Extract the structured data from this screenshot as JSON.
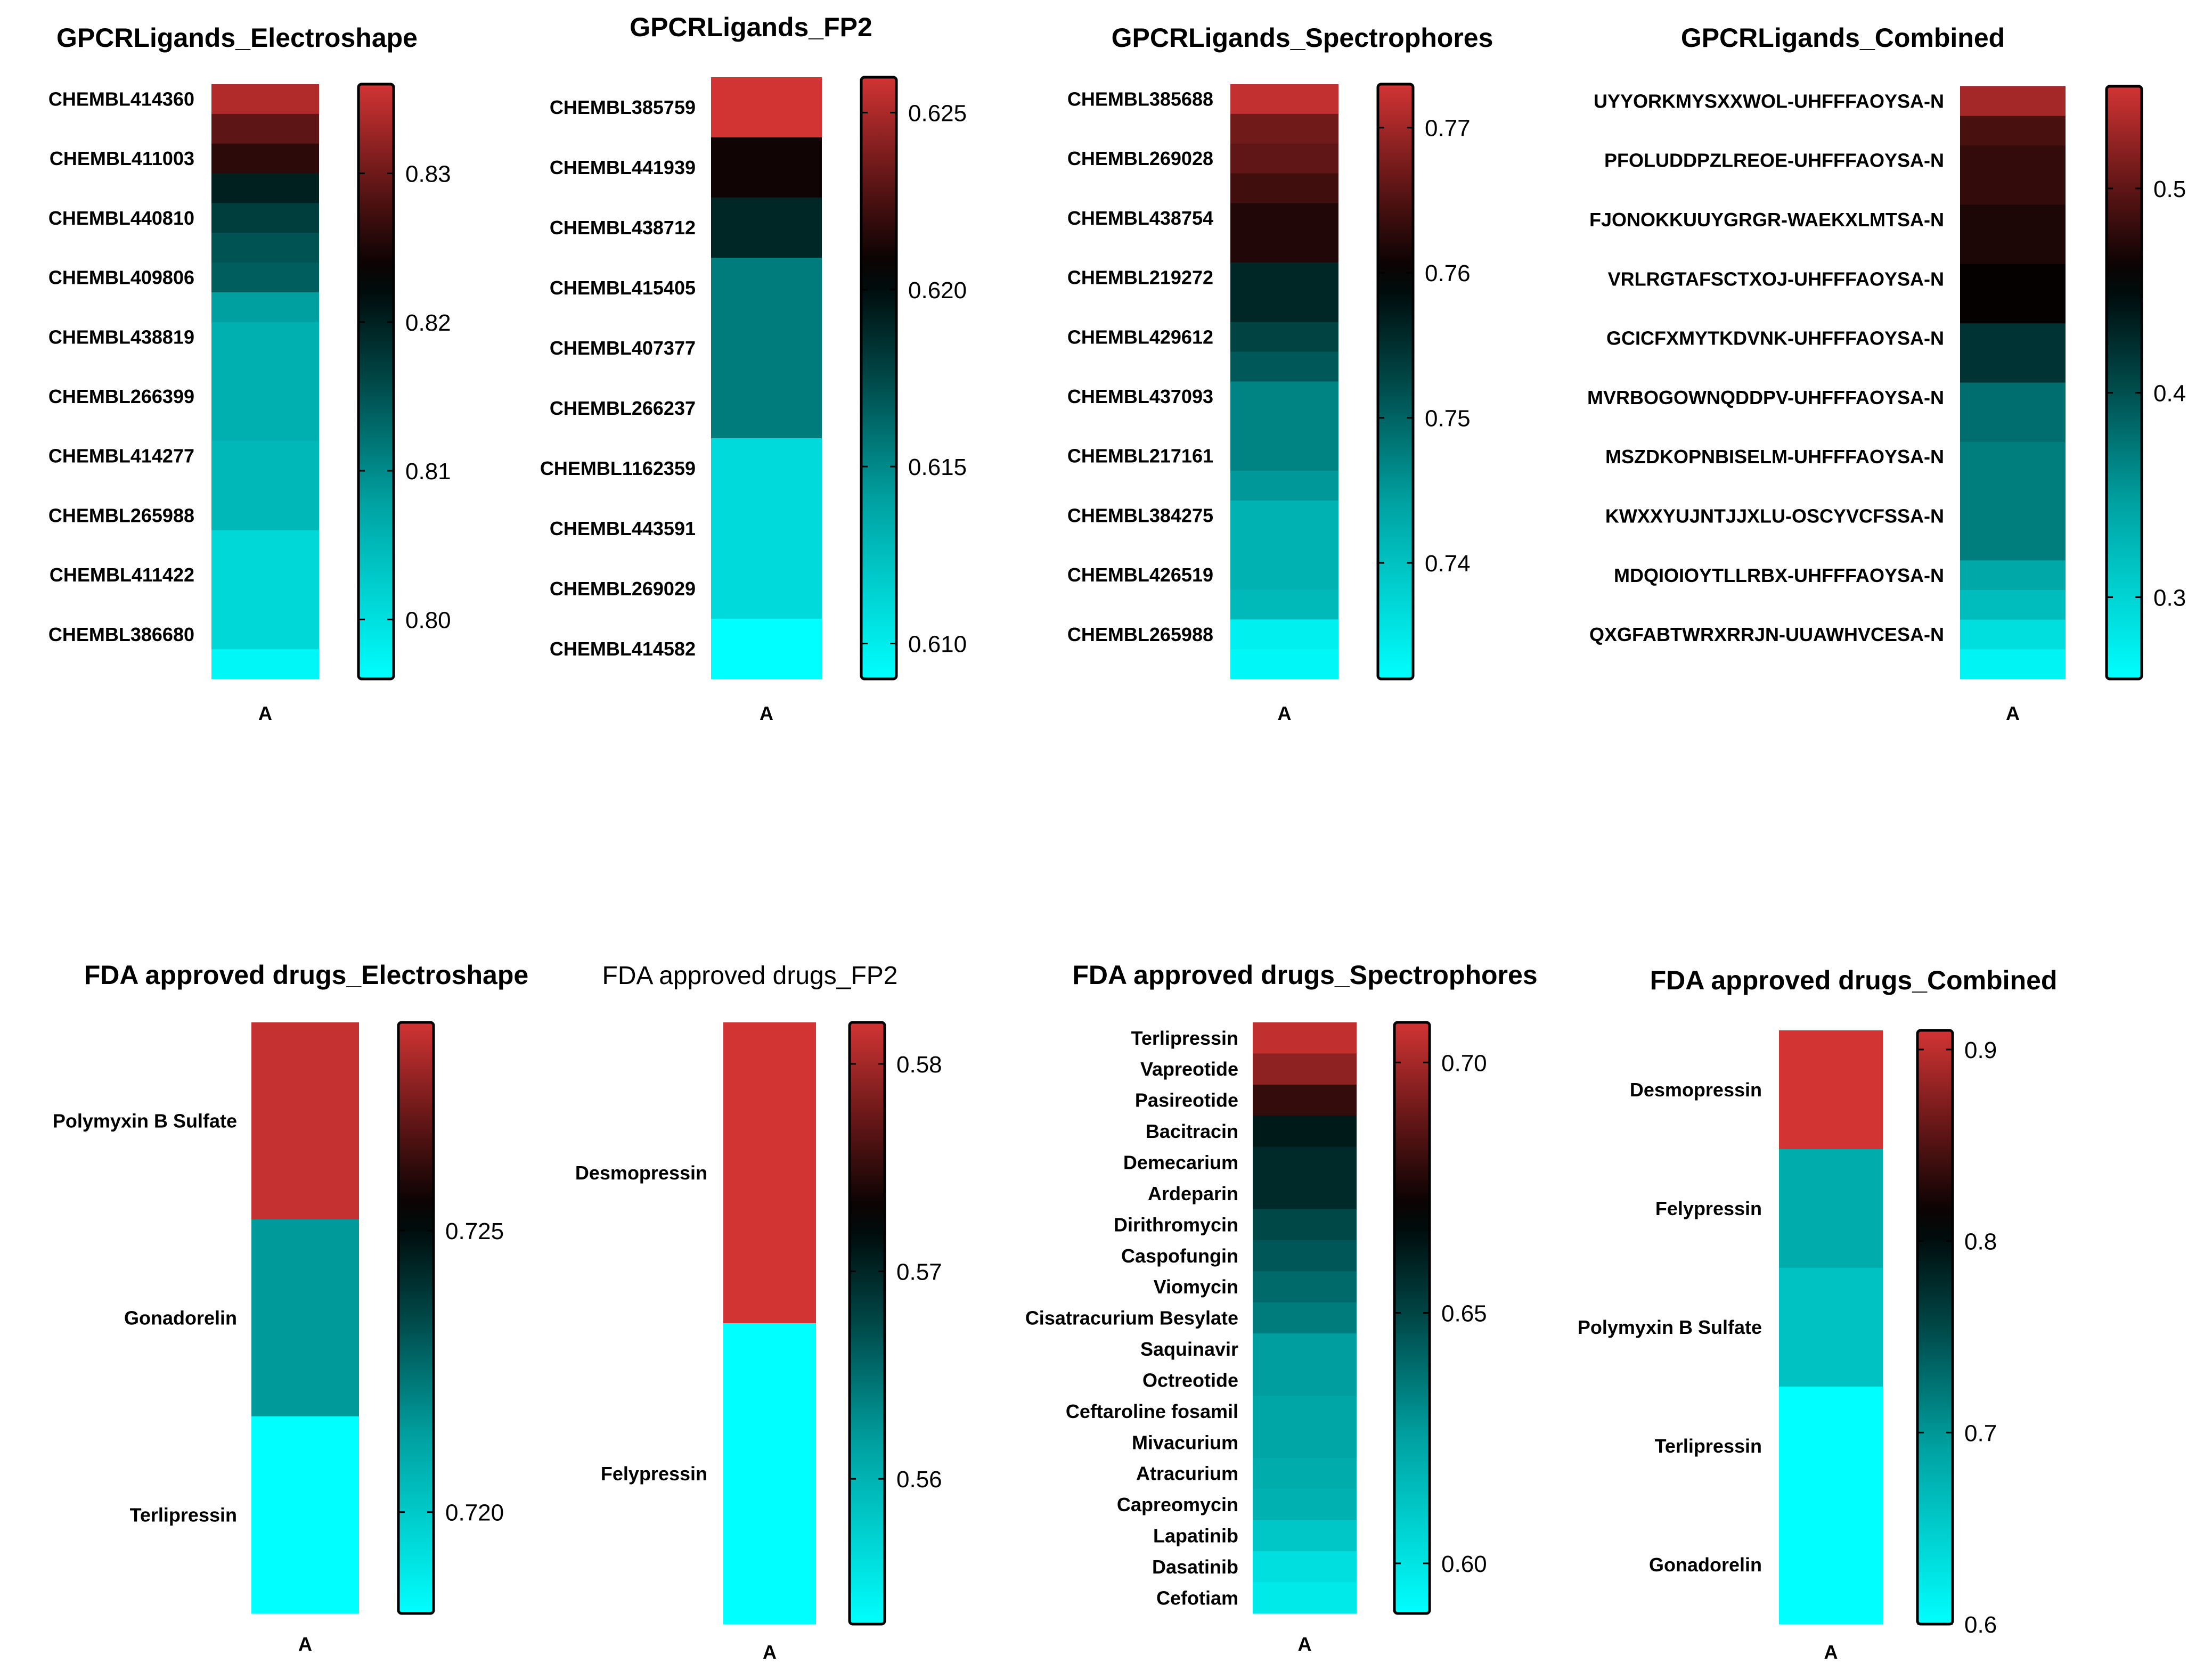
{
  "chart_data": [
    {
      "type": "heatmap",
      "title": "GPCRLigands_Electroshape",
      "title_bold": true,
      "column_label": "A",
      "rows": [
        "CHEMBL414360",
        "",
        "CHEMBL411003",
        "",
        "CHEMBL440810",
        "",
        "CHEMBL409806",
        "",
        "CHEMBL438819",
        "",
        "CHEMBL266399",
        "",
        "CHEMBL414277",
        "",
        "CHEMBL265988",
        "",
        "CHEMBL411422",
        "",
        "CHEMBL386680",
        ""
      ],
      "values": [
        0.834,
        0.829,
        0.826,
        0.82,
        0.817,
        0.815,
        0.814,
        0.808,
        0.806,
        0.806,
        0.806,
        0.806,
        0.805,
        0.805,
        0.805,
        0.801,
        0.801,
        0.801,
        0.801,
        0.797
      ],
      "colorbar": {
        "min": 0.796,
        "max": 0.836,
        "ticks": [
          0.8,
          0.81,
          0.82,
          0.83
        ],
        "tick_labels": [
          "0.80",
          "0.81",
          "0.82",
          "0.83"
        ]
      }
    },
    {
      "type": "heatmap",
      "title": "GPCRLigands_FP2",
      "title_bold": true,
      "column_label": "A",
      "rows": [
        "CHEMBL385759",
        "CHEMBL441939",
        "CHEMBL438712",
        "CHEMBL415405",
        "CHEMBL407377",
        "CHEMBL266237",
        "CHEMBL1162359",
        "CHEMBL443591",
        "CHEMBL269029",
        "CHEMBL414582"
      ],
      "values": [
        0.626,
        0.621,
        0.619,
        0.6155,
        0.6155,
        0.6155,
        0.611,
        0.611,
        0.611,
        0.609
      ],
      "colorbar": {
        "min": 0.609,
        "max": 0.626,
        "ticks": [
          0.61,
          0.615,
          0.62,
          0.625
        ],
        "tick_labels": [
          "0.610",
          "0.615",
          "0.620",
          "0.625"
        ]
      }
    },
    {
      "type": "heatmap",
      "title": "GPCRLigands_Spectrophores",
      "title_bold": true,
      "column_label": "A",
      "rows": [
        "CHEMBL385688",
        "",
        "CHEMBL269028",
        "",
        "CHEMBL438754",
        "",
        "CHEMBL219272",
        "",
        "CHEMBL429612",
        "",
        "CHEMBL437093",
        "",
        "CHEMBL217161",
        "",
        "CHEMBL384275",
        "",
        "CHEMBL426519",
        "",
        "CHEMBL265988",
        ""
      ],
      "values": [
        0.772,
        0.767,
        0.766,
        0.764,
        0.762,
        0.762,
        0.756,
        0.756,
        0.753,
        0.751,
        0.747,
        0.747,
        0.747,
        0.745,
        0.742,
        0.742,
        0.742,
        0.741,
        0.734,
        0.733
      ],
      "colorbar": {
        "min": 0.732,
        "max": 0.773,
        "ticks": [
          0.74,
          0.75,
          0.76,
          0.77
        ],
        "tick_labels": [
          "0.74",
          "0.75",
          "0.76",
          "0.77"
        ]
      }
    },
    {
      "type": "heatmap",
      "title": "GPCRLigands_Combined",
      "title_bold": true,
      "column_label": "A",
      "rows": [
        "UYYORKMYSXXWOL-UHFFFAOYSA-N",
        "",
        "PFOLUDDPZLREOE-UHFFFAOYSA-N",
        "",
        "FJONOKKUUYGRGR-WAEKXLMTSA-N",
        "",
        "VRLRGTAFSCTXOJ-UHFFFAOYSA-N",
        "",
        "GCICFXMYTKDVNK-UHFFFAOYSA-N",
        "",
        "MVRBOGOWNQDDPV-UHFFFAOYSA-N",
        "",
        "MSZDKOPNBISELM-UHFFFAOYSA-N",
        "",
        "KWXXYUJNTJJXLU-OSCYVCFSSA-N",
        "",
        "MDQIOIOYTLLRBX-UHFFFAOYSA-N",
        "",
        "QXGFABTWRXRRJN-UUAWHVCESA-N",
        ""
      ],
      "values": [
        0.53,
        0.49,
        0.48,
        0.48,
        0.47,
        0.47,
        0.46,
        0.46,
        0.42,
        0.42,
        0.38,
        0.38,
        0.37,
        0.37,
        0.37,
        0.37,
        0.34,
        0.32,
        0.29,
        0.27
      ],
      "colorbar": {
        "min": 0.26,
        "max": 0.55,
        "ticks": [
          0.3,
          0.4,
          0.5
        ],
        "tick_labels": [
          "0.3",
          "0.4",
          "0.5"
        ]
      }
    },
    {
      "type": "heatmap",
      "title": "FDA approved drugs_Electroshape",
      "title_bold": true,
      "column_label": "A",
      "rows": [
        "Polymyxin B Sulfate",
        "Gonadorelin",
        "Terlipressin"
      ],
      "values": [
        0.7285,
        0.7215,
        0.7182
      ],
      "colorbar": {
        "min": 0.7182,
        "max": 0.7287,
        "ticks": [
          0.72,
          0.725
        ],
        "tick_labels": [
          "0.720",
          "0.725"
        ]
      }
    },
    {
      "type": "heatmap",
      "title": "FDA approved drugs_FP2",
      "title_bold": false,
      "column_label": "A",
      "rows": [
        "Desmopressin",
        "Felypressin"
      ],
      "values": [
        0.582,
        0.553
      ],
      "colorbar": {
        "min": 0.553,
        "max": 0.582,
        "ticks": [
          0.56,
          0.57,
          0.58
        ],
        "tick_labels": [
          "0.56",
          "0.57",
          "0.58"
        ]
      }
    },
    {
      "type": "heatmap",
      "title": "FDA approved drugs_Spectrophores",
      "title_bold": true,
      "column_label": "A",
      "rows": [
        "Terlipressin",
        "Vapreotide",
        "Pasireotide",
        "Bacitracin",
        "Demecarium",
        "Ardeparin",
        "Dirithromycin",
        "Caspofungin",
        "Viomycin",
        "Cisatracurium Besylate",
        "Saquinavir",
        "Octreotide",
        "Ceftaroline fosamil",
        "Mivacurium",
        "Atracurium",
        "Capreomycin",
        "Lapatinib",
        "Dasatinib",
        "Cefotiam"
      ],
      "values": [
        0.705,
        0.696,
        0.68,
        0.663,
        0.658,
        0.658,
        0.649,
        0.645,
        0.64,
        0.635,
        0.626,
        0.626,
        0.623,
        0.623,
        0.621,
        0.619,
        0.611,
        0.602,
        0.598
      ],
      "colorbar": {
        "min": 0.59,
        "max": 0.708,
        "ticks": [
          0.6,
          0.65,
          0.7
        ],
        "tick_labels": [
          "0.60",
          "0.65",
          "0.70"
        ]
      }
    },
    {
      "type": "heatmap",
      "title": "FDA approved drugs_Combined",
      "title_bold": true,
      "column_label": "A",
      "rows": [
        "Desmopressin",
        "Felypressin",
        "Polymyxin B Sulfate",
        "Terlipressin",
        "Gonadorelin"
      ],
      "values": [
        0.91,
        0.68,
        0.66,
        0.6,
        0.6
      ],
      "colorbar": {
        "min": 0.6,
        "max": 0.91,
        "ticks": [
          0.6,
          0.7,
          0.8,
          0.9
        ],
        "tick_labels": [
          "0.6",
          "0.7",
          "0.8",
          "0.9"
        ]
      }
    }
  ]
}
